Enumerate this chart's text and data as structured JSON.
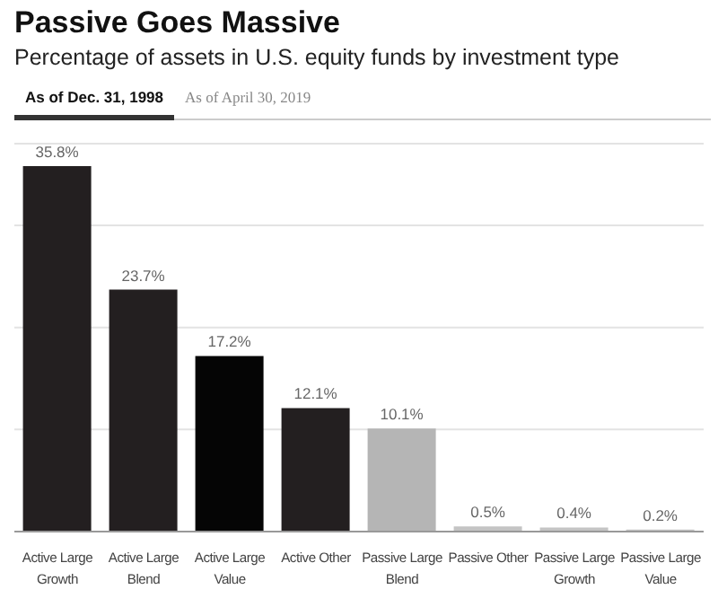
{
  "chart_data": {
    "type": "bar",
    "title": "Passive Goes Massive",
    "subtitle": "Percentage of assets in U.S. equity funds by investment type",
    "annotations": [
      "As of Dec. 31, 1998",
      "As of April 30, 2019"
    ],
    "categories": [
      "Active Large Growth",
      "Active Large Blend",
      "Active Large Value",
      "Active Other",
      "Passive Large Blend",
      "Passive Other",
      "Passive Large Growth",
      "Passive Large Value"
    ],
    "values": [
      35.8,
      23.7,
      17.2,
      12.1,
      10.1,
      0.5,
      0.4,
      0.2
    ],
    "value_labels": [
      "35.8%",
      "23.7%",
      "17.2%",
      "12.1%",
      "10.1%",
      "0.5%",
      "0.4%",
      "0.2%"
    ],
    "colors": [
      "#231f20",
      "#231f20",
      "#050505",
      "#231f20",
      "#b5b5b5",
      "#c4c4c4",
      "#c4c4c4",
      "#c4c4c4"
    ],
    "ylim": [
      0,
      38
    ],
    "yticks": [
      {
        "value": 0,
        "label": null
      },
      {
        "value": 10,
        "label": null
      },
      {
        "value": 20,
        "label": null
      },
      {
        "value": 30,
        "label": null
      }
    ],
    "grid": "y",
    "tick_labels": "x",
    "legend": false
  }
}
